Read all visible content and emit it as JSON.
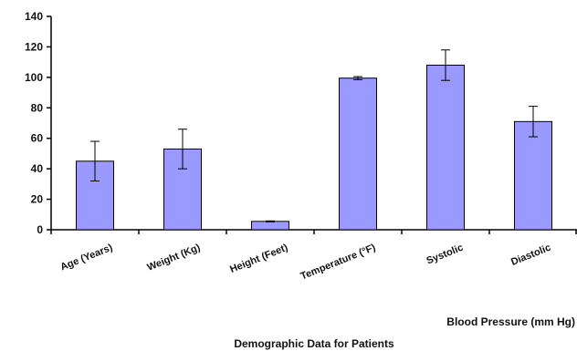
{
  "chart_data": {
    "type": "bar",
    "title": "Demographic Data for Patients",
    "categories": [
      "Age (Years)",
      "Weight (Kg)",
      "Height (Feet)",
      "Temperature (°F)",
      "Systolic",
      "Diastolic"
    ],
    "values": [
      45,
      53,
      5.5,
      99.5,
      108,
      71
    ],
    "error": [
      13,
      13,
      0.3,
      1,
      10,
      10
    ],
    "ylim": [
      0,
      140
    ],
    "yticks": [
      0,
      20,
      40,
      60,
      80,
      100,
      120,
      140
    ],
    "annotation": "Blood Pressure (mm Hg)",
    "grid": false,
    "legend": "none",
    "bar_color": "#9999ff",
    "bar_stroke": "#000000"
  }
}
